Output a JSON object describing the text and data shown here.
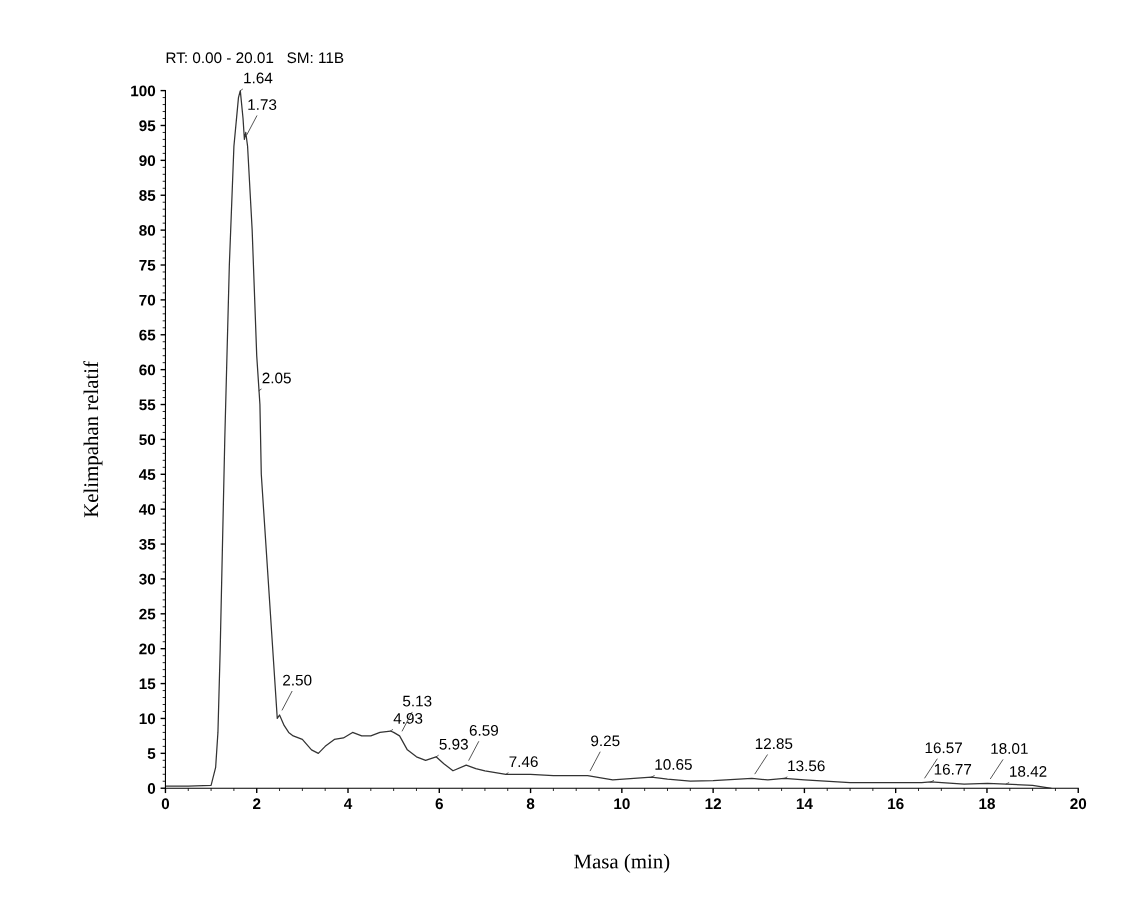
{
  "chart_data": {
    "type": "line",
    "xlabel": "Masa (min)",
    "ylabel": "Kelimpahan relatif",
    "x": [
      0,
      0.5,
      1.0,
      1.1,
      1.15,
      1.2,
      1.3,
      1.4,
      1.5,
      1.6,
      1.64,
      1.7,
      1.73,
      1.76,
      1.8,
      1.9,
      2.0,
      2.05,
      2.07,
      2.1,
      2.2,
      2.3,
      2.4,
      2.45,
      2.5,
      2.6,
      2.7,
      2.8,
      3.0,
      3.2,
      3.35,
      3.5,
      3.7,
      3.9,
      4.1,
      4.3,
      4.5,
      4.7,
      4.93,
      5.0,
      5.13,
      5.3,
      5.5,
      5.7,
      5.93,
      6.1,
      6.3,
      6.59,
      6.8,
      7.0,
      7.46,
      8.0,
      8.5,
      9.25,
      9.8,
      10.65,
      11.0,
      11.5,
      12.0,
      12.85,
      13.2,
      13.56,
      14.0,
      15.0,
      16.0,
      16.57,
      16.77,
      17.5,
      18.01,
      18.42,
      19.0,
      19.4
    ],
    "series": [
      {
        "color": "#333333",
        "values": [
          0.3,
          0.3,
          0.4,
          3,
          8,
          20,
          50,
          75,
          92,
          99,
          100,
          96,
          93,
          94,
          92,
          80,
          62,
          57,
          55,
          45,
          35,
          25,
          15,
          10,
          10.5,
          9,
          8,
          7.5,
          7,
          5.5,
          5,
          6,
          7,
          7.2,
          8,
          7.5,
          7.5,
          8,
          8.2,
          8,
          7.5,
          5.5,
          4.5,
          4,
          4.5,
          3.5,
          2.5,
          3.3,
          2.8,
          2.5,
          2,
          2,
          1.8,
          1.8,
          1.2,
          1.6,
          1.3,
          1,
          1.1,
          1.4,
          1.2,
          1.4,
          1.2,
          0.8,
          0.8,
          0.8,
          0.9,
          0.6,
          0.7,
          0.6,
          0.4,
          0
        ]
      }
    ],
    "xlim": [
      0,
      20
    ],
    "xticks": [
      0,
      2,
      4,
      6,
      8,
      10,
      12,
      14,
      16,
      18,
      20
    ],
    "ylim": [
      0,
      100
    ],
    "yticks": [
      0,
      5,
      10,
      15,
      20,
      25,
      30,
      35,
      40,
      45,
      50,
      55,
      60,
      65,
      70,
      75,
      80,
      85,
      90,
      95,
      100
    ],
    "grid": false,
    "marker": "none",
    "line_style": "solid",
    "annotations": [
      "RT: 0.00 - 20.01   SM: 11B",
      {
        "text": "1.64",
        "x": 1.64,
        "y": 100
      },
      {
        "text": "1.73",
        "x": 1.73,
        "y": 93
      },
      {
        "text": "2.05",
        "x": 2.05,
        "y": 57
      },
      {
        "text": "2.50",
        "x": 2.5,
        "y": 10.5
      },
      {
        "text": "4.93",
        "x": 4.93,
        "y": 8.2
      },
      {
        "text": "5.13",
        "x": 5.13,
        "y": 7.5
      },
      {
        "text": "5.93",
        "x": 5.93,
        "y": 4.5
      },
      {
        "text": "6.59",
        "x": 6.59,
        "y": 3.3
      },
      {
        "text": "7.46",
        "x": 7.46,
        "y": 2
      },
      {
        "text": "9.25",
        "x": 9.25,
        "y": 1.8
      },
      {
        "text": "10.65",
        "x": 10.65,
        "y": 1.6
      },
      {
        "text": "12.85",
        "x": 12.85,
        "y": 1.4
      },
      {
        "text": "13.56",
        "x": 13.56,
        "y": 1.4
      },
      {
        "text": "16.57",
        "x": 16.57,
        "y": 0.8
      },
      {
        "text": "16.77",
        "x": 16.77,
        "y": 0.9
      },
      {
        "text": "18.01",
        "x": 18.01,
        "y": 0.7
      },
      {
        "text": "18.42",
        "x": 18.42,
        "y": 0.6
      }
    ]
  }
}
